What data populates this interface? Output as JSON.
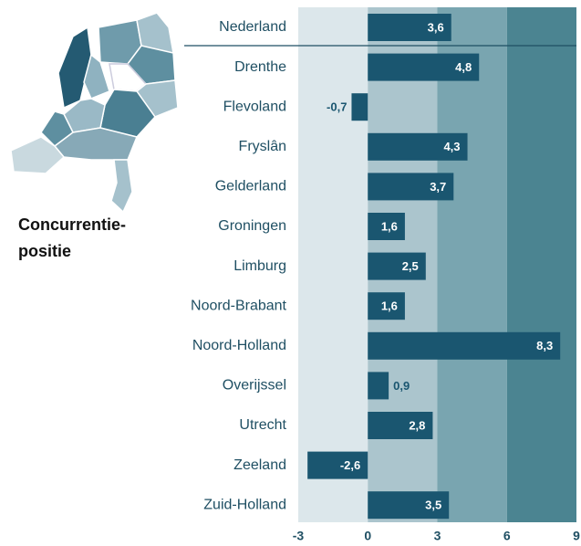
{
  "chart_data": {
    "type": "bar",
    "orientation": "horizontal",
    "title_lines": [
      "Concurrentie-",
      "positie"
    ],
    "categories": [
      "Nederland",
      "Drenthe",
      "Flevoland",
      "Fryslân",
      "Gelderland",
      "Groningen",
      "Limburg",
      "Noord-Brabant",
      "Noord-Holland",
      "Overijssel",
      "Utrecht",
      "Zeeland",
      "Zuid-Holland"
    ],
    "values": [
      3.6,
      4.8,
      -0.7,
      4.3,
      3.7,
      1.6,
      2.5,
      1.6,
      8.3,
      0.9,
      2.8,
      -2.6,
      3.5
    ],
    "value_labels": [
      "3,6",
      "4,8",
      "-0,7",
      "4,3",
      "3,7",
      "1,6",
      "2,5",
      "1,6",
      "8,3",
      "0,9",
      "2,8",
      "-2,6",
      "3,5"
    ],
    "color": "#1a5670",
    "xlim": [
      -3,
      9
    ],
    "xticks": [
      -3,
      0,
      3,
      6,
      9
    ],
    "band_colors": [
      "#dce7eb",
      "#abc5cd",
      "#79a5b0",
      "#4b8491"
    ]
  }
}
